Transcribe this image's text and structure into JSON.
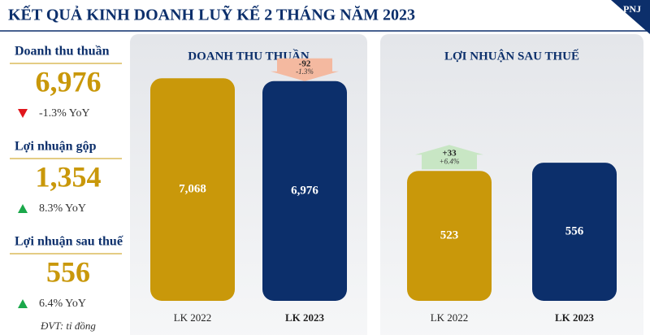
{
  "header": {
    "title": "KẾT QUẢ KINH DOANH LUỸ KẾ 2 THÁNG NĂM 2023",
    "logo": "PNJ"
  },
  "kpis": [
    {
      "label": "Doanh thu thuần",
      "value": "6,976",
      "change": "-1.3% YoY",
      "direction": "down"
    },
    {
      "label": "Lợi nhuận gộp",
      "value": "1,354",
      "change": "8.3% YoY",
      "direction": "up"
    },
    {
      "label": "Lợi nhuận sau thuế",
      "value": "556",
      "change": "6.4% YoY",
      "direction": "up"
    }
  ],
  "unit_note": "ĐVT: tỉ đồng",
  "chart_data": [
    {
      "type": "bar",
      "title": "DOANH THU THUẦN",
      "categories": [
        "LK 2022",
        "LK 2023"
      ],
      "values": [
        7068,
        6976
      ],
      "value_labels": [
        "7,068",
        "6,976"
      ],
      "colors": [
        "#c9980a",
        "#0c2f6b"
      ],
      "change_labels": [
        null,
        "-92"
      ],
      "change_percent_labels": [
        null,
        "-1.3%"
      ],
      "ylim": [
        0,
        7100
      ]
    },
    {
      "type": "bar",
      "title": "LỢI NHUẬN SAU THUẾ",
      "categories": [
        "LK 2022",
        "LK 2023"
      ],
      "values": [
        523,
        556
      ],
      "value_labels": [
        "523",
        "556"
      ],
      "colors": [
        "#c9980a",
        "#0c2f6b"
      ],
      "change_labels": [
        "+33",
        null
      ],
      "change_percent_labels": [
        "+6.4%",
        null
      ],
      "ylim": [
        0,
        900
      ]
    }
  ]
}
